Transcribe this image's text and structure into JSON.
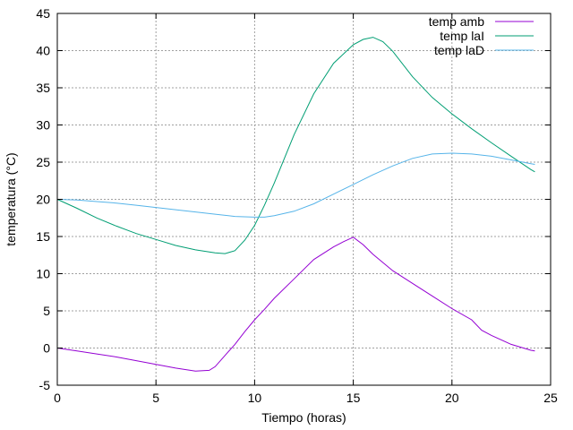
{
  "chart_data": {
    "type": "line",
    "title": "",
    "xlabel": "Tiempo (horas)",
    "ylabel": "temperatura (°C)",
    "xlim": [
      0,
      25
    ],
    "ylim": [
      -5,
      45
    ],
    "xticks": [
      0,
      5,
      10,
      15,
      20,
      25
    ],
    "yticks": [
      -5,
      0,
      5,
      10,
      15,
      20,
      25,
      30,
      35,
      40,
      45
    ],
    "grid": true,
    "legend_position": "top-right",
    "series": [
      {
        "name": "temp amb",
        "color": "#9400d3",
        "x": [
          0,
          1,
          2,
          3,
          4,
          5,
          6,
          7,
          7.7,
          8,
          8.5,
          9,
          9.5,
          10,
          10.5,
          11,
          12,
          13,
          14,
          14.5,
          15,
          15.5,
          16,
          17,
          18,
          19,
          20,
          21,
          21.5,
          22,
          23,
          24,
          24.2
        ],
        "y": [
          0,
          -0.4,
          -0.8,
          -1.2,
          -1.7,
          -2.2,
          -2.7,
          -3.1,
          -3.0,
          -2.5,
          -1.0,
          0.5,
          2.2,
          3.8,
          5.2,
          6.7,
          9.3,
          11.9,
          13.6,
          14.3,
          14.9,
          13.9,
          12.6,
          10.4,
          8.7,
          7.0,
          5.3,
          3.8,
          2.4,
          1.7,
          0.5,
          -0.3,
          -0.4
        ]
      },
      {
        "name": "temp laI",
        "color": "#009e73",
        "x": [
          0,
          1,
          2,
          3,
          4,
          5,
          6,
          7,
          8,
          8.5,
          9,
          9.5,
          10,
          10.5,
          11,
          12,
          13,
          14,
          15,
          15.5,
          16,
          16.5,
          17,
          18,
          19,
          20,
          21,
          22,
          23,
          24,
          24.2
        ],
        "y": [
          20,
          18.8,
          17.5,
          16.4,
          15.4,
          14.6,
          13.8,
          13.2,
          12.8,
          12.7,
          13.1,
          14.5,
          16.5,
          19.2,
          22.2,
          28.7,
          34.2,
          38.3,
          40.8,
          41.5,
          41.8,
          41.2,
          39.9,
          36.5,
          33.7,
          31.5,
          29.5,
          27.6,
          25.8,
          24.0,
          23.7
        ]
      },
      {
        "name": "temp laD",
        "color": "#56b4e9",
        "x": [
          0,
          1,
          2,
          3,
          4,
          5,
          6,
          7,
          8,
          9,
          10,
          10.5,
          11,
          12,
          13,
          14,
          15,
          16,
          17,
          18,
          19,
          20,
          21,
          22,
          23,
          24,
          24.2
        ],
        "y": [
          20,
          19.9,
          19.7,
          19.5,
          19.2,
          18.9,
          18.6,
          18.3,
          18.0,
          17.7,
          17.6,
          17.6,
          17.8,
          18.4,
          19.4,
          20.7,
          22.0,
          23.3,
          24.5,
          25.5,
          26.1,
          26.2,
          26.1,
          25.8,
          25.3,
          24.8,
          24.7
        ]
      }
    ]
  }
}
